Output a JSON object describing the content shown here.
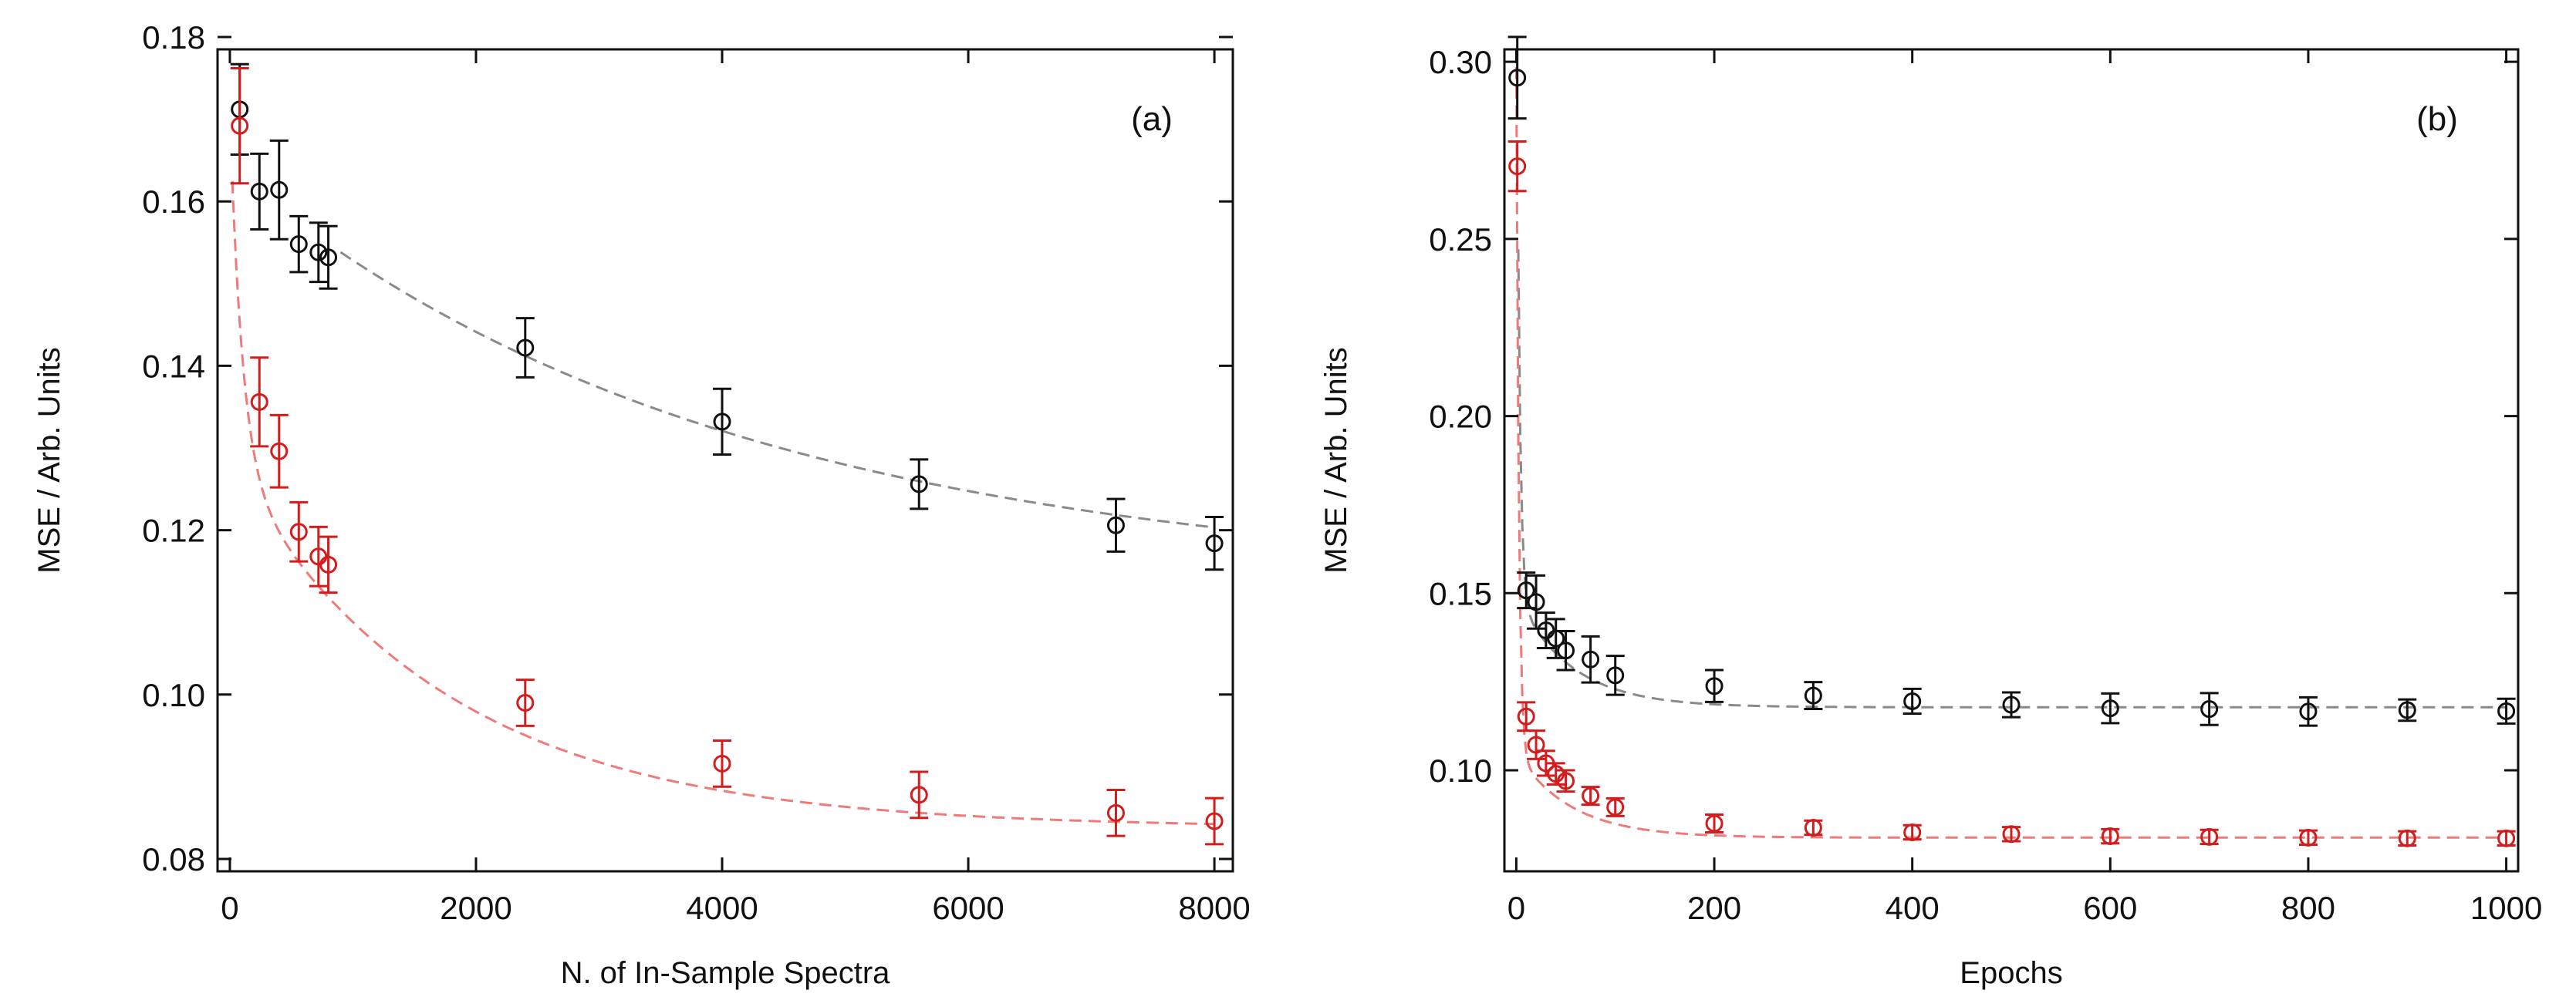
{
  "colors": {
    "series_black": "#111111",
    "series_red": "#d41c1c",
    "fit_black": "#8a8a8a",
    "fit_red": "#f07a7a",
    "axis": "#111111"
  },
  "chart_data": [
    {
      "type": "scatter",
      "panel_label": "(a)",
      "xlabel": "N. of In-Sample Spectra",
      "ylabel": "MSE / Arb. Units",
      "xlim": [
        -100,
        8150
      ],
      "ylim": [
        0.0785,
        0.1785
      ],
      "xticks": [
        0,
        2000,
        4000,
        6000,
        8000
      ],
      "xtick_labels": [
        "0",
        "2000",
        "4000",
        "6000",
        "8000"
      ],
      "yticks": [
        0.08,
        0.1,
        0.12,
        0.14,
        0.16,
        0.18
      ],
      "ytick_labels": [
        "0.08",
        "0.10",
        "0.12",
        "0.14",
        "0.16",
        "0.18"
      ],
      "grid": false,
      "legend": "none",
      "series": [
        {
          "name": "black",
          "color": "#111111",
          "fit_color": "#8a8a8a",
          "x": [
            80,
            240,
            400,
            560,
            720,
            800,
            2400,
            4000,
            5600,
            7200,
            8000
          ],
          "y": [
            0.1712,
            0.1612,
            0.1614,
            0.1548,
            0.1538,
            0.1532,
            0.1422,
            0.1332,
            0.1256,
            0.1206,
            0.1184
          ],
          "err": [
            0.0055,
            0.0046,
            0.006,
            0.0034,
            0.0036,
            0.0038,
            0.0036,
            0.004,
            0.003,
            0.0032,
            0.0032
          ],
          "fit": {
            "model": "a + b*exp(-x/c)",
            "a": 0.1135,
            "b": 0.0505,
            "c": 4000,
            "x_start": 900,
            "x_end": 8000
          }
        },
        {
          "name": "red",
          "color": "#d41c1c",
          "fit_color": "#f07a7a",
          "x": [
            80,
            240,
            400,
            560,
            720,
            800,
            2400,
            4000,
            5600,
            7200,
            8000
          ],
          "y": [
            0.1692,
            0.1356,
            0.1296,
            0.1198,
            0.1168,
            0.1158,
            0.099,
            0.0916,
            0.0878,
            0.0856,
            0.0846
          ],
          "err": [
            0.007,
            0.0054,
            0.0044,
            0.0036,
            0.0036,
            0.0034,
            0.0028,
            0.0028,
            0.0028,
            0.0028,
            0.0028
          ],
          "fit": {
            "model": "a + b1*exp(-x/c1) + b2*exp(-x/c2)",
            "a": 0.0838,
            "b1": 0.0426,
            "c1": 100,
            "b2": 0.0443,
            "c2": 1750,
            "x_start": 20,
            "x_end": 8000
          }
        }
      ]
    },
    {
      "type": "scatter",
      "panel_label": "(b)",
      "xlabel": "Epochs",
      "ylabel": "MSE / Arb. Units",
      "xlim": [
        -12,
        1012
      ],
      "ylim": [
        0.0715,
        0.3035
      ],
      "xticks": [
        0,
        200,
        400,
        600,
        800,
        1000
      ],
      "xtick_labels": [
        "0",
        "200",
        "400",
        "600",
        "800",
        "1000"
      ],
      "yticks": [
        0.1,
        0.15,
        0.2,
        0.25,
        0.3
      ],
      "ytick_labels": [
        "0.10",
        "0.15",
        "0.20",
        "0.25",
        "0.30"
      ],
      "grid": false,
      "legend": "none",
      "series": [
        {
          "name": "black",
          "color": "#111111",
          "fit_color": "#8a8a8a",
          "x": [
            1,
            10,
            20,
            30,
            40,
            50,
            75,
            100,
            200,
            300,
            400,
            500,
            600,
            700,
            800,
            900,
            1000
          ],
          "y": [
            0.2955,
            0.1508,
            0.1475,
            0.1395,
            0.1372,
            0.1338,
            0.1313,
            0.1268,
            0.1238,
            0.1211,
            0.1195,
            0.1185,
            0.1175,
            0.1173,
            0.1166,
            0.117,
            0.1167
          ],
          "err": [
            0.0115,
            0.005,
            0.0075,
            0.005,
            0.0055,
            0.0055,
            0.0065,
            0.0055,
            0.0045,
            0.0038,
            0.0035,
            0.0035,
            0.0042,
            0.0045,
            0.004,
            0.003,
            0.0035
          ],
          "fit": {
            "model": "a + b1*exp(-x/c1) + b2*exp(-x/c2)",
            "a": 0.1178,
            "b1": 0.202,
            "c1": 2.8,
            "b2": 0.0315,
            "c2": 55,
            "x_start": 0,
            "x_end": 1000
          }
        },
        {
          "name": "red",
          "color": "#d41c1c",
          "fit_color": "#f07a7a",
          "x": [
            1,
            10,
            20,
            30,
            40,
            50,
            75,
            100,
            200,
            300,
            400,
            500,
            600,
            700,
            800,
            900,
            1000
          ],
          "y": [
            0.2705,
            0.1152,
            0.1072,
            0.102,
            0.099,
            0.097,
            0.0928,
            0.0896,
            0.085,
            0.0838,
            0.0825,
            0.082,
            0.0814,
            0.0812,
            0.081,
            0.0808,
            0.0808
          ],
          "err": [
            0.007,
            0.004,
            0.004,
            0.0035,
            0.003,
            0.003,
            0.0025,
            0.0025,
            0.0025,
            0.002,
            0.002,
            0.002,
            0.002,
            0.002,
            0.002,
            0.002,
            0.002
          ],
          "fit": {
            "model": "a + b1*exp(-x/c1) + b2*exp(-x/c2)",
            "a": 0.081,
            "b1": 0.1935,
            "c1": 2.6,
            "b2": 0.024,
            "c2": 55,
            "x_start": 0,
            "x_end": 1000
          }
        }
      ]
    }
  ]
}
